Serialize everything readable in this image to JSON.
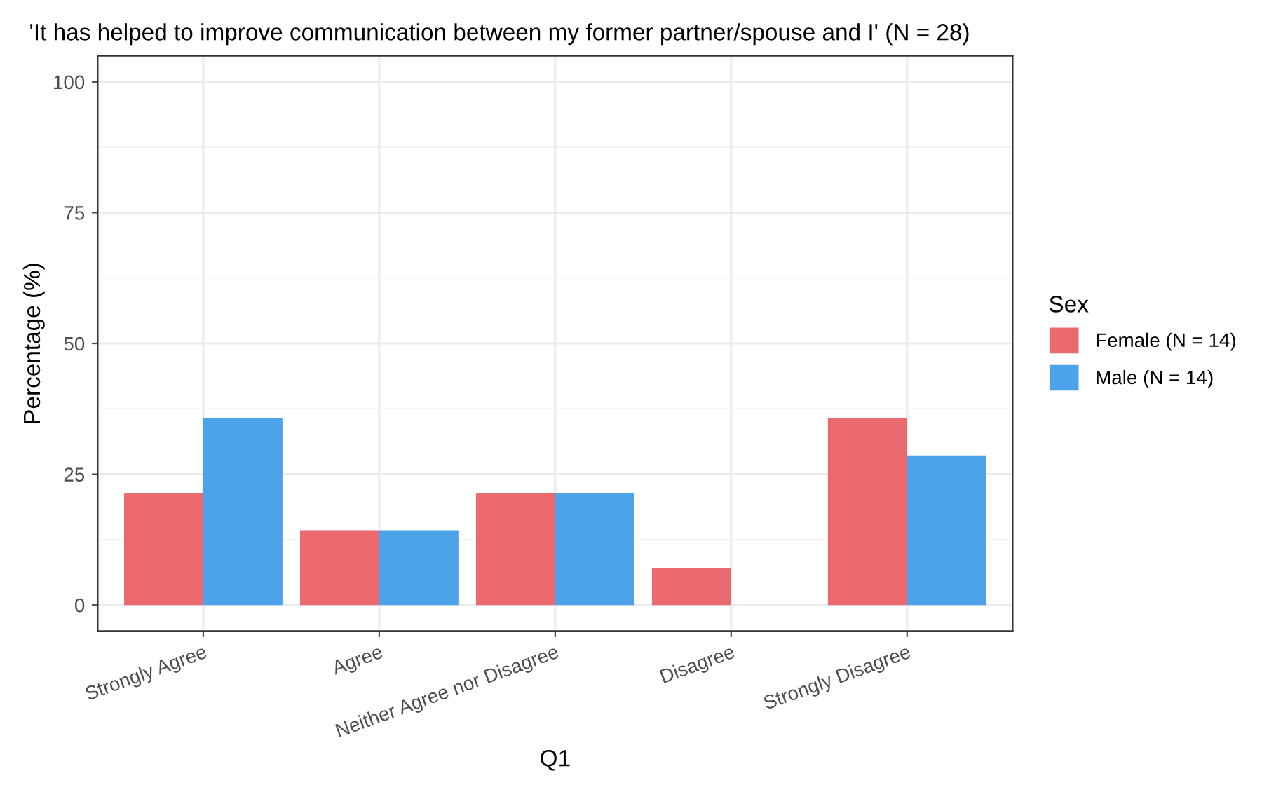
{
  "chart_data": {
    "type": "bar",
    "title": "'It has helped to improve communication between my former partner/spouse and I' (N = 28)",
    "xlabel": "Q1",
    "ylabel": "Percentage (%)",
    "legend_title": "Sex",
    "categories": [
      "Strongly Agree",
      "Agree",
      "Neither Agree nor Disagree",
      "Disagree",
      "Strongly Disagree"
    ],
    "series": [
      {
        "name": "Female (N = 14)",
        "color": "#eb6a6f",
        "values": [
          21.4,
          14.3,
          21.4,
          7.1,
          35.7
        ]
      },
      {
        "name": "Male (N = 14)",
        "color": "#4da3ea",
        "values": [
          35.7,
          14.3,
          21.4,
          0,
          28.6
        ]
      }
    ],
    "ylim": [
      -5,
      105
    ],
    "yticks": [
      0,
      25,
      50,
      75,
      100
    ],
    "grid": true,
    "legend": "right"
  }
}
